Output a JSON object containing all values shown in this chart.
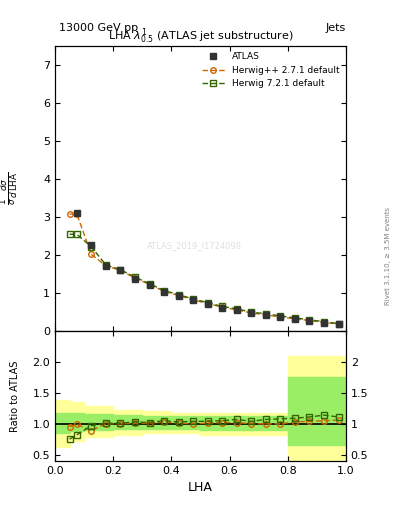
{
  "title_top": "13000 GeV pp",
  "title_top_right": "Jets",
  "plot_title": "LHA $\\lambda^{1}_{0.5}$ (ATLAS jet substructure)",
  "xlabel": "LHA",
  "ylabel_main": "$\\frac{1}{\\sigma}\\frac{d\\sigma}{d\\,\\text{LHA}}$",
  "ylabel_ratio": "Ratio to ATLAS",
  "right_label": "Rivet 3.1.10, ≥ 3.5M events",
  "watermark": "ATLAS_2019_I1724098",
  "atlas_x": [
    0.075,
    0.125,
    0.175,
    0.225,
    0.275,
    0.325,
    0.375,
    0.425,
    0.475,
    0.525,
    0.575,
    0.625,
    0.675,
    0.725,
    0.775,
    0.825,
    0.875,
    0.925,
    0.975
  ],
  "atlas_y": [
    3.1,
    2.28,
    1.72,
    1.6,
    1.38,
    1.22,
    1.02,
    0.93,
    0.82,
    0.72,
    0.62,
    0.55,
    0.48,
    0.43,
    0.37,
    0.32,
    0.27,
    0.22,
    0.18
  ],
  "herwig_pp_x": [
    0.05,
    0.075,
    0.125,
    0.175,
    0.225,
    0.275,
    0.325,
    0.375,
    0.425,
    0.475,
    0.525,
    0.575,
    0.625,
    0.675,
    0.725,
    0.775,
    0.825,
    0.875,
    0.925,
    0.975
  ],
  "herwig_pp_y": [
    3.08,
    3.08,
    2.02,
    1.72,
    1.6,
    1.4,
    1.23,
    1.05,
    0.94,
    0.82,
    0.73,
    0.63,
    0.56,
    0.48,
    0.43,
    0.37,
    0.33,
    0.28,
    0.23,
    0.19
  ],
  "herwig72_x": [
    0.05,
    0.075,
    0.125,
    0.175,
    0.225,
    0.275,
    0.325,
    0.375,
    0.425,
    0.475,
    0.525,
    0.575,
    0.625,
    0.675,
    0.725,
    0.775,
    0.825,
    0.875,
    0.925,
    0.975
  ],
  "herwig72_y": [
    2.55,
    2.55,
    2.22,
    1.74,
    1.62,
    1.42,
    1.25,
    1.07,
    0.96,
    0.85,
    0.75,
    0.65,
    0.59,
    0.5,
    0.46,
    0.4,
    0.35,
    0.3,
    0.25,
    0.2
  ],
  "herwig_pp_ratio": [
    0.95,
    0.99,
    0.89,
    1.0,
    1.0,
    1.01,
    1.01,
    1.03,
    1.01,
    1.0,
    1.01,
    1.02,
    1.02,
    1.0,
    1.0,
    1.0,
    1.03,
    1.04,
    1.05,
    1.06
  ],
  "herwig72_ratio": [
    0.75,
    0.82,
    0.97,
    1.01,
    1.01,
    1.03,
    1.02,
    1.05,
    1.03,
    1.04,
    1.04,
    1.05,
    1.07,
    1.04,
    1.07,
    1.08,
    1.09,
    1.11,
    1.14,
    1.11
  ],
  "ratio_x": [
    0.05,
    0.075,
    0.125,
    0.175,
    0.225,
    0.275,
    0.325,
    0.375,
    0.425,
    0.475,
    0.525,
    0.575,
    0.625,
    0.675,
    0.725,
    0.775,
    0.825,
    0.875,
    0.925,
    0.975
  ],
  "yellow_band_x": [
    0.0,
    0.05,
    0.1,
    0.2,
    0.3,
    0.4,
    0.5,
    0.6,
    0.7,
    0.8,
    0.9,
    0.95,
    1.0
  ],
  "yellow_band_lo": [
    0.62,
    0.62,
    0.72,
    0.78,
    0.82,
    0.85,
    0.85,
    0.82,
    0.82,
    0.82,
    0.42,
    0.42,
    0.42
  ],
  "yellow_band_hi": [
    1.38,
    1.38,
    1.35,
    1.28,
    1.22,
    1.2,
    1.18,
    1.18,
    1.18,
    1.18,
    2.1,
    2.1,
    2.1
  ],
  "green_band_x": [
    0.0,
    0.05,
    0.1,
    0.2,
    0.3,
    0.4,
    0.5,
    0.6,
    0.7,
    0.8,
    0.9,
    0.95,
    1.0
  ],
  "green_band_lo": [
    0.85,
    0.85,
    0.88,
    0.9,
    0.92,
    0.92,
    0.92,
    0.9,
    0.9,
    0.9,
    0.65,
    0.65,
    0.65
  ],
  "green_band_hi": [
    1.18,
    1.18,
    1.18,
    1.16,
    1.14,
    1.13,
    1.12,
    1.12,
    1.12,
    1.12,
    1.75,
    1.75,
    1.75
  ],
  "color_atlas": "#333333",
  "color_herwig_pp": "#cc6600",
  "color_herwig72": "#336600",
  "color_yellow": "#ffff99",
  "color_green": "#99ee66",
  "main_ylim": [
    0,
    7.5
  ],
  "ratio_ylim": [
    0.4,
    2.5
  ],
  "xlim": [
    0.0,
    1.0
  ]
}
